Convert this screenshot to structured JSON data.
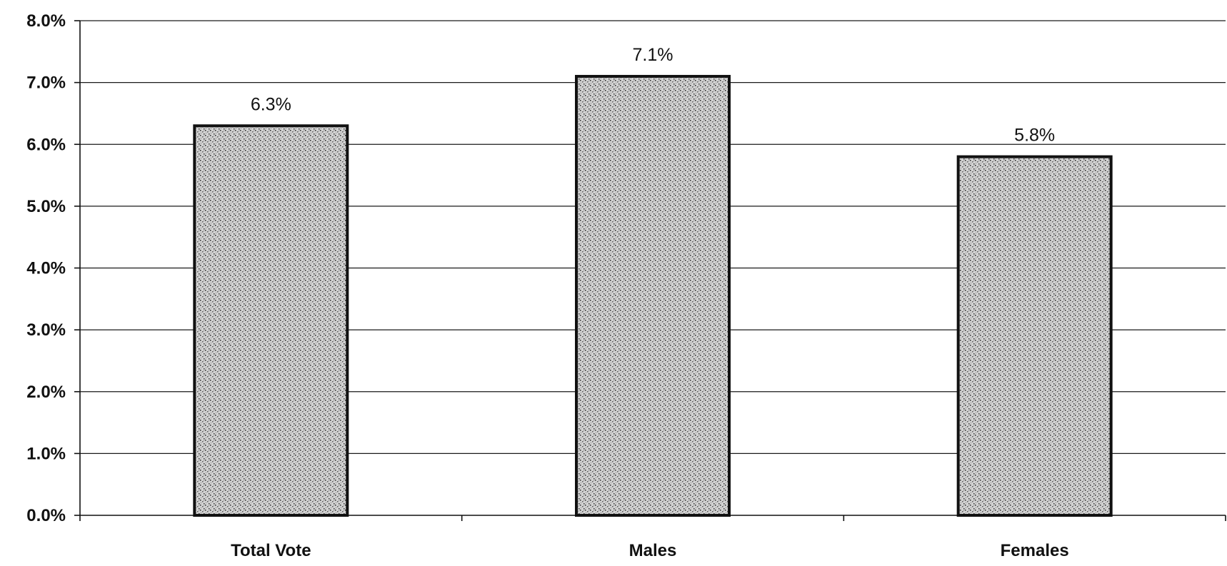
{
  "chart_data": {
    "type": "bar",
    "title": "",
    "xlabel": "",
    "ylabel": "",
    "categories": [
      "Total Vote",
      "Males",
      "Females"
    ],
    "series": [
      {
        "values": [
          6.3,
          7.1,
          5.8
        ]
      }
    ],
    "data_labels": [
      "6.3%",
      "7.1%",
      "5.8%"
    ],
    "ylim": [
      0,
      8
    ],
    "yticks": [
      0,
      1,
      2,
      3,
      4,
      5,
      6,
      7,
      8
    ],
    "ytick_labels": [
      "0.0%",
      "1.0%",
      "2.0%",
      "3.0%",
      "4.0%",
      "5.0%",
      "6.0%",
      "7.0%",
      "8.0%"
    ],
    "grid": true,
    "legend": "none",
    "bar_fill": "#b8b8b8",
    "bar_edge": "#111111"
  }
}
